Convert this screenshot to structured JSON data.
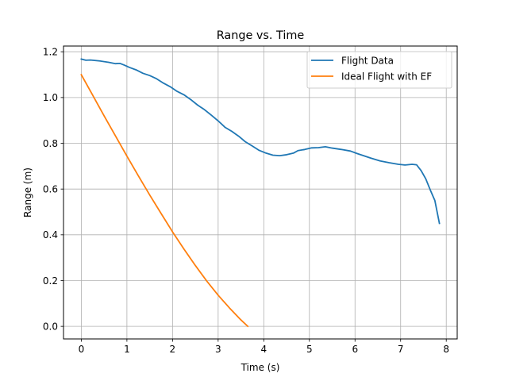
{
  "chart_data": {
    "type": "line",
    "title": "Range vs. Time",
    "xlabel": "Time (s)",
    "ylabel": "Range (m)",
    "xlim": [
      -0.39,
      8.24
    ],
    "ylim": [
      -0.055,
      1.225
    ],
    "xticks": [
      0,
      1,
      2,
      3,
      4,
      5,
      6,
      7,
      8
    ],
    "xtick_labels": [
      "0",
      "1",
      "2",
      "3",
      "4",
      "5",
      "6",
      "7",
      "8"
    ],
    "yticks": [
      0.0,
      0.2,
      0.4,
      0.6,
      0.8,
      1.0,
      1.2
    ],
    "ytick_labels": [
      "0.0",
      "0.2",
      "0.4",
      "0.6",
      "0.8",
      "1.0",
      "1.2"
    ],
    "grid": true,
    "legend_position": "upper-right",
    "series": [
      {
        "name": "Flight Data",
        "color": "#1f77b4",
        "points": [
          [
            0.0,
            1.168
          ],
          [
            0.1,
            1.163
          ],
          [
            0.2,
            1.164
          ],
          [
            0.4,
            1.16
          ],
          [
            0.6,
            1.154
          ],
          [
            0.75,
            1.148
          ],
          [
            0.85,
            1.149
          ],
          [
            0.95,
            1.141
          ],
          [
            1.05,
            1.132
          ],
          [
            1.2,
            1.121
          ],
          [
            1.35,
            1.106
          ],
          [
            1.5,
            1.096
          ],
          [
            1.65,
            1.082
          ],
          [
            1.8,
            1.063
          ],
          [
            1.95,
            1.047
          ],
          [
            2.1,
            1.027
          ],
          [
            2.25,
            1.012
          ],
          [
            2.4,
            0.991
          ],
          [
            2.55,
            0.967
          ],
          [
            2.7,
            0.947
          ],
          [
            2.85,
            0.923
          ],
          [
            3.0,
            0.898
          ],
          [
            3.15,
            0.87
          ],
          [
            3.3,
            0.852
          ],
          [
            3.45,
            0.831
          ],
          [
            3.6,
            0.806
          ],
          [
            3.75,
            0.788
          ],
          [
            3.9,
            0.769
          ],
          [
            4.05,
            0.757
          ],
          [
            4.2,
            0.748
          ],
          [
            4.35,
            0.746
          ],
          [
            4.5,
            0.75
          ],
          [
            4.65,
            0.757
          ],
          [
            4.75,
            0.768
          ],
          [
            4.9,
            0.773
          ],
          [
            5.05,
            0.78
          ],
          [
            5.2,
            0.781
          ],
          [
            5.35,
            0.785
          ],
          [
            5.5,
            0.779
          ],
          [
            5.7,
            0.773
          ],
          [
            5.9,
            0.766
          ],
          [
            6.05,
            0.755
          ],
          [
            6.2,
            0.745
          ],
          [
            6.35,
            0.735
          ],
          [
            6.55,
            0.723
          ],
          [
            6.75,
            0.715
          ],
          [
            6.95,
            0.708
          ],
          [
            7.1,
            0.705
          ],
          [
            7.25,
            0.708
          ],
          [
            7.35,
            0.706
          ],
          [
            7.45,
            0.68
          ],
          [
            7.55,
            0.645
          ],
          [
            7.65,
            0.596
          ],
          [
            7.75,
            0.55
          ],
          [
            7.85,
            0.45
          ]
        ]
      },
      {
        "name": "Ideal Flight with EF",
        "color": "#ff7f0e",
        "points": [
          [
            0.0,
            1.1
          ],
          [
            0.25,
            1.01
          ],
          [
            0.5,
            0.92
          ],
          [
            0.75,
            0.832
          ],
          [
            1.0,
            0.744
          ],
          [
            1.25,
            0.658
          ],
          [
            1.5,
            0.574
          ],
          [
            1.75,
            0.493
          ],
          [
            2.0,
            0.413
          ],
          [
            2.25,
            0.338
          ],
          [
            2.5,
            0.266
          ],
          [
            2.75,
            0.198
          ],
          [
            3.0,
            0.136
          ],
          [
            3.25,
            0.08
          ],
          [
            3.5,
            0.028
          ],
          [
            3.65,
            0.0
          ]
        ]
      }
    ]
  }
}
